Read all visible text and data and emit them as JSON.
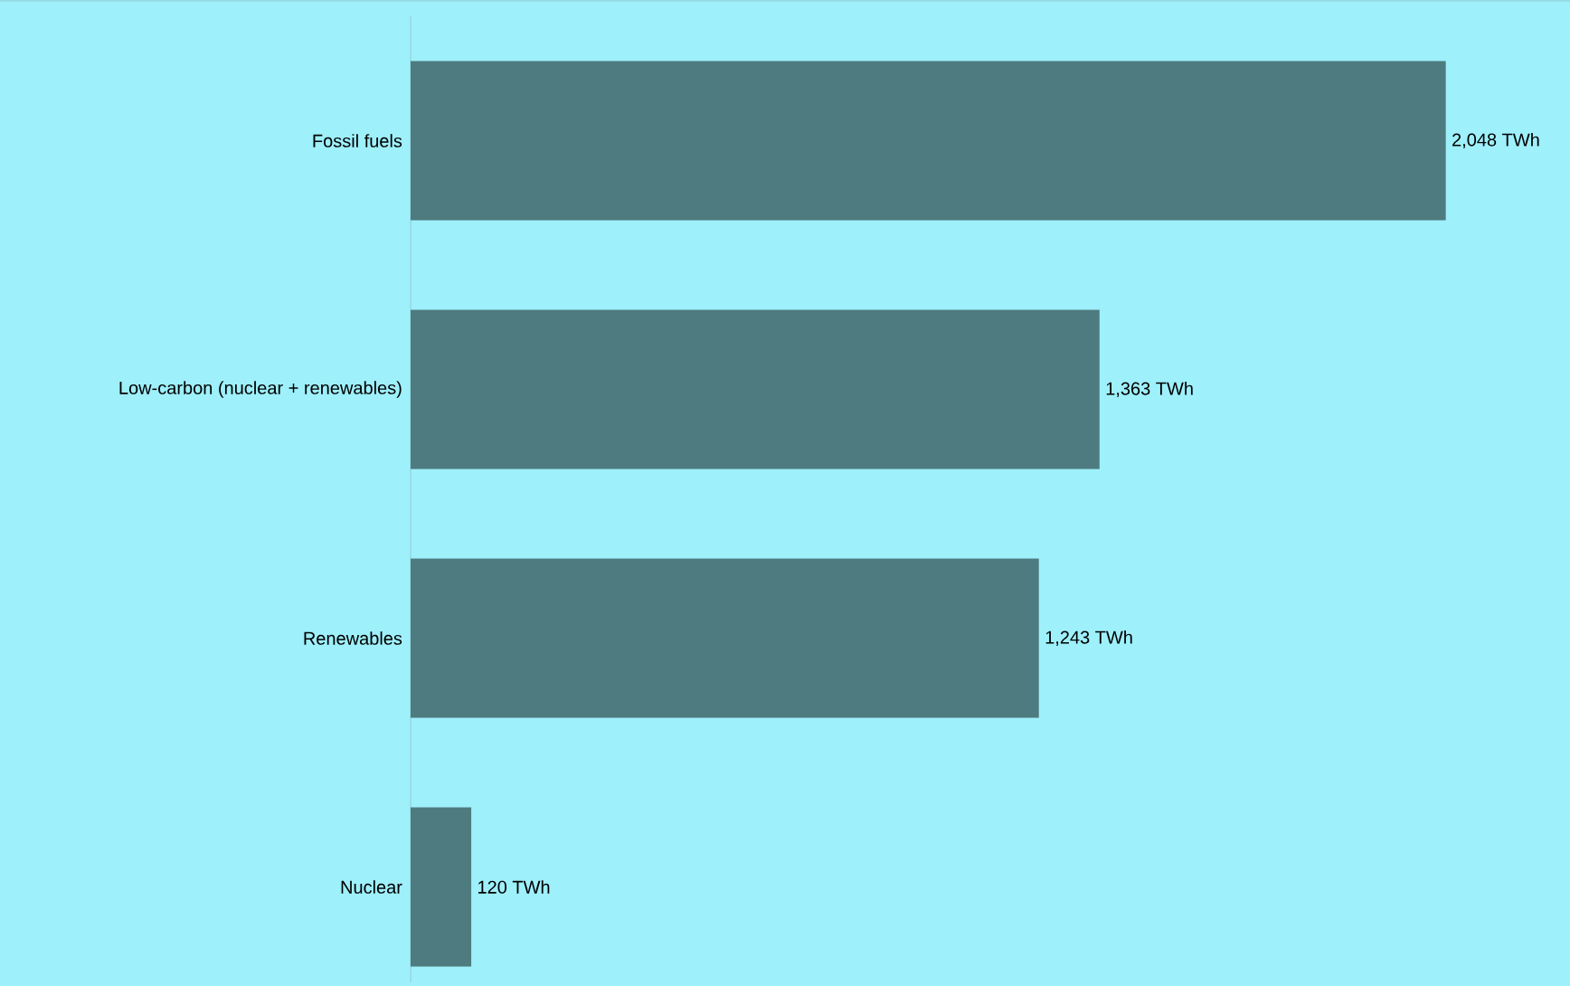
{
  "chart_data": {
    "type": "bar",
    "orientation": "horizontal",
    "categories": [
      "Fossil fuels",
      "Low-carbon (nuclear + renewables)",
      "Renewables",
      "Nuclear"
    ],
    "values": [
      2048,
      1363,
      1243,
      120
    ],
    "value_labels": [
      "2,048 TWh",
      "1,363 TWh",
      "1,243 TWh",
      "120 TWh"
    ],
    "color": "#4e7b7f"
  }
}
